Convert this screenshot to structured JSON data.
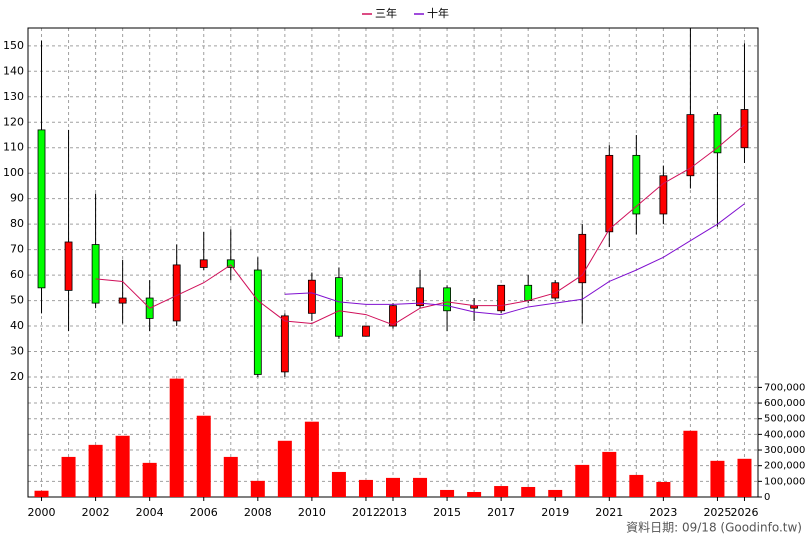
{
  "chart_data": {
    "type": "candlestick",
    "x": [
      2000,
      2001,
      2002,
      2003,
      2004,
      2005,
      2006,
      2007,
      2008,
      2009,
      2010,
      2011,
      2012,
      2013,
      2014,
      2015,
      2016,
      2017,
      2018,
      2019,
      2020,
      2021,
      2022,
      2023,
      2024,
      2025,
      2026
    ],
    "xlim": [
      1999.5,
      2026.5
    ],
    "xticks": [
      2000,
      2002,
      2004,
      2006,
      2008,
      2010,
      2012,
      2013,
      2015,
      2017,
      2019,
      2021,
      2023,
      2025,
      2026
    ],
    "ylim": [
      20,
      157
    ],
    "yticks": [
      20,
      30,
      40,
      50,
      60,
      70,
      80,
      90,
      100,
      110,
      120,
      130,
      140,
      150
    ],
    "grid": true,
    "up_color": "#ff0000",
    "down_color": "#00ff00",
    "open": [
      117,
      54,
      72,
      49,
      51,
      42,
      63,
      66,
      62,
      22,
      45,
      59,
      36,
      40,
      48,
      55,
      47,
      46,
      56,
      51,
      57,
      77,
      107,
      84,
      99,
      123,
      110
    ],
    "high": [
      152,
      117,
      92,
      66,
      58,
      72,
      77,
      78,
      67,
      45,
      61,
      63,
      40,
      49,
      62,
      56,
      51,
      56,
      60,
      58,
      80,
      111,
      115,
      103,
      157,
      124,
      151
    ],
    "low": [
      45,
      38,
      47,
      41,
      38,
      40,
      62,
      58,
      20,
      20,
      42,
      35,
      36,
      39,
      47,
      38,
      42,
      45,
      49,
      50,
      41,
      71,
      76,
      80,
      94,
      79,
      104
    ],
    "close": [
      55,
      73,
      49,
      51,
      43,
      64,
      66,
      63,
      21,
      44,
      58,
      36,
      40,
      48,
      55,
      46,
      48,
      56,
      50,
      57,
      76,
      107,
      84,
      99,
      123,
      108,
      125
    ],
    "series": [
      {
        "name": "三年",
        "color": "#d0105a",
        "values": [
          null,
          null,
          58.5,
          57.5,
          47,
          52,
          57,
          64,
          50,
          42,
          41,
          46,
          44.5,
          40.5,
          47,
          49.5,
          48,
          48,
          50,
          53,
          60,
          78,
          87,
          96,
          102,
          110,
          119
        ]
      },
      {
        "name": "十年",
        "color": "#8010d0",
        "values": [
          null,
          null,
          null,
          null,
          null,
          null,
          null,
          null,
          null,
          52.5,
          53,
          49.5,
          48.5,
          48.5,
          49,
          48,
          45.5,
          44.5,
          47.5,
          49,
          50.5,
          57.5,
          62,
          67,
          73.5,
          80,
          88
        ]
      }
    ],
    "volume": {
      "color": "#ff0000",
      "values": [
        40000,
        256000,
        333000,
        391000,
        218000,
        756000,
        519000,
        256000,
        103000,
        359000,
        481000,
        160000,
        109000,
        122000,
        122000,
        45000,
        32000,
        70000,
        64000,
        45000,
        205000,
        288000,
        141000,
        96000,
        423000,
        231000,
        244000
      ],
      "ylim": [
        0,
        760000
      ],
      "yticks": [
        0,
        {
          "value": 100000,
          "label": "100,000"
        },
        {
          "value": 200000,
          "label": "200,000"
        },
        {
          "value": 300000,
          "label": "300,000"
        },
        {
          "value": 400000,
          "label": "400,000"
        },
        {
          "value": 500000,
          "label": "500,000"
        },
        {
          "value": 600000,
          "label": "600,000"
        },
        {
          "value": 700000,
          "label": "700,000"
        }
      ]
    },
    "footer": "資料日期: 09/18  (Goodinfo.tw)"
  }
}
